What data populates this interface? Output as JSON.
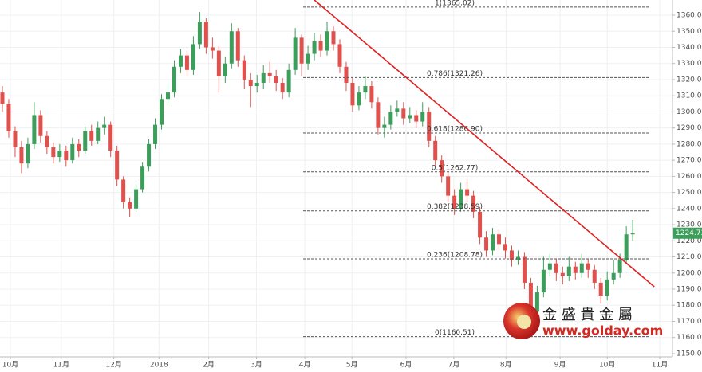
{
  "chart_data": {
    "type": "candlestick",
    "up_color": "#3c9e5a",
    "down_color": "#e0504c",
    "ylim": [
      1148,
      1369.4
    ],
    "yticks": [
      1150,
      1160,
      1170,
      1180,
      1190,
      1200,
      1210,
      1220,
      1230,
      1240,
      1250,
      1260,
      1270,
      1280,
      1290,
      1300,
      1310,
      1320,
      1330,
      1340,
      1350,
      1360
    ],
    "yticks_labels": [
      "1150.00",
      "1160.00",
      "1170.00",
      "1180.00",
      "1190.00",
      "1200.00",
      "1210.00",
      "1220.00",
      "1230.00",
      "1240.00",
      "1250.00",
      "1260.00",
      "1270.00",
      "1280.00",
      "1290.00",
      "1300.00",
      "1310.00",
      "1320.00",
      "1330.00",
      "1340.00",
      "1350.00",
      "1360.00"
    ],
    "xlim": [
      -0.375,
      105.25
    ],
    "xticks": [
      {
        "value": 1.25,
        "label": "10月"
      },
      {
        "value": 9.25,
        "label": "11月"
      },
      {
        "value": 17.5,
        "label": "12月"
      },
      {
        "value": 24.6,
        "label": "2018"
      },
      {
        "value": 32.4,
        "label": "2月"
      },
      {
        "value": 39.9,
        "label": "3月"
      },
      {
        "value": 47.5,
        "label": "4月"
      },
      {
        "value": 54.9,
        "label": "5月"
      },
      {
        "value": 63.4,
        "label": "6月"
      },
      {
        "value": 70.9,
        "label": "7月"
      },
      {
        "value": 79.1,
        "label": "8月"
      },
      {
        "value": 87.6,
        "label": "9月"
      },
      {
        "value": 95,
        "label": "10月"
      },
      {
        "value": 103.25,
        "label": "11月"
      }
    ],
    "grid": true,
    "ohlc": [
      [
        1312,
        1316,
        1300,
        1305
      ],
      [
        1305,
        1308,
        1284,
        1288
      ],
      [
        1288,
        1291,
        1272,
        1278
      ],
      [
        1278,
        1282,
        1262,
        1268
      ],
      [
        1268,
        1284,
        1265,
        1280
      ],
      [
        1280,
        1306,
        1277,
        1298
      ],
      [
        1298,
        1301,
        1281,
        1285
      ],
      [
        1285,
        1288,
        1274,
        1278
      ],
      [
        1278,
        1281,
        1268,
        1272
      ],
      [
        1272,
        1280,
        1269,
        1276
      ],
      [
        1276,
        1279,
        1266,
        1270
      ],
      [
        1270,
        1284,
        1268,
        1280
      ],
      [
        1280,
        1283,
        1272,
        1276
      ],
      [
        1276,
        1291,
        1274,
        1288
      ],
      [
        1288,
        1292,
        1279,
        1282
      ],
      [
        1282,
        1294,
        1280,
        1290
      ],
      [
        1290,
        1297,
        1286,
        1292
      ],
      [
        1292,
        1294,
        1272,
        1276
      ],
      [
        1276,
        1279,
        1254,
        1258
      ],
      [
        1258,
        1260,
        1240,
        1244
      ],
      [
        1244,
        1247,
        1235,
        1240
      ],
      [
        1240,
        1255,
        1238,
        1252
      ],
      [
        1252,
        1269,
        1250,
        1266
      ],
      [
        1266,
        1283,
        1263,
        1280
      ],
      [
        1280,
        1296,
        1277,
        1292
      ],
      [
        1292,
        1311,
        1289,
        1308
      ],
      [
        1308,
        1318,
        1304,
        1312
      ],
      [
        1312,
        1332,
        1309,
        1328
      ],
      [
        1328,
        1339,
        1324,
        1335
      ],
      [
        1335,
        1338,
        1322,
        1326
      ],
      [
        1326,
        1347,
        1323,
        1342
      ],
      [
        1342,
        1362,
        1339,
        1356
      ],
      [
        1356,
        1358,
        1336,
        1340
      ],
      [
        1340,
        1346,
        1333,
        1338
      ],
      [
        1338,
        1341,
        1312,
        1322
      ],
      [
        1322,
        1334,
        1318,
        1330
      ],
      [
        1330,
        1355,
        1327,
        1350
      ],
      [
        1350,
        1352,
        1328,
        1332
      ],
      [
        1332,
        1335,
        1314,
        1320
      ],
      [
        1320,
        1324,
        1303,
        1316
      ],
      [
        1316,
        1323,
        1312,
        1318
      ],
      [
        1318,
        1329,
        1314,
        1324
      ],
      [
        1324,
        1331,
        1318,
        1322
      ],
      [
        1322,
        1326,
        1313,
        1318
      ],
      [
        1318,
        1321,
        1308,
        1312
      ],
      [
        1312,
        1330,
        1309,
        1326
      ],
      [
        1326,
        1352,
        1323,
        1346
      ],
      [
        1346,
        1348,
        1322,
        1330
      ],
      [
        1330,
        1341,
        1326,
        1336
      ],
      [
        1336,
        1349,
        1332,
        1344
      ],
      [
        1344,
        1348,
        1334,
        1338
      ],
      [
        1338,
        1356,
        1335,
        1350
      ],
      [
        1350,
        1353,
        1338,
        1342
      ],
      [
        1342,
        1345,
        1324,
        1328
      ],
      [
        1328,
        1331,
        1313,
        1318
      ],
      [
        1318,
        1321,
        1300,
        1304
      ],
      [
        1304,
        1316,
        1301,
        1312
      ],
      [
        1312,
        1322,
        1308,
        1316
      ],
      [
        1316,
        1319,
        1302,
        1306
      ],
      [
        1306,
        1309,
        1286,
        1290
      ],
      [
        1290,
        1297,
        1284,
        1292
      ],
      [
        1292,
        1304,
        1289,
        1300
      ],
      [
        1300,
        1307,
        1297,
        1302
      ],
      [
        1302,
        1306,
        1292,
        1296
      ],
      [
        1296,
        1303,
        1293,
        1298
      ],
      [
        1298,
        1301,
        1290,
        1294
      ],
      [
        1294,
        1306,
        1291,
        1300
      ],
      [
        1300,
        1303,
        1278,
        1282
      ],
      [
        1282,
        1285,
        1266,
        1270
      ],
      [
        1270,
        1273,
        1256,
        1260
      ],
      [
        1260,
        1263,
        1244,
        1248
      ],
      [
        1248,
        1252,
        1236,
        1240
      ],
      [
        1240,
        1256,
        1238,
        1252
      ],
      [
        1252,
        1258,
        1244,
        1248
      ],
      [
        1248,
        1251,
        1234,
        1238
      ],
      [
        1238,
        1241,
        1218,
        1222
      ],
      [
        1222,
        1226,
        1210,
        1214
      ],
      [
        1214,
        1228,
        1211,
        1224
      ],
      [
        1224,
        1227,
        1214,
        1218
      ],
      [
        1218,
        1222,
        1209,
        1214
      ],
      [
        1214,
        1217,
        1204,
        1208
      ],
      [
        1208,
        1214,
        1205,
        1210
      ],
      [
        1210,
        1213,
        1190,
        1194
      ],
      [
        1194,
        1197,
        1170,
        1176
      ],
      [
        1176,
        1192,
        1173,
        1188
      ],
      [
        1188,
        1210,
        1185,
        1202
      ],
      [
        1202,
        1212,
        1198,
        1206
      ],
      [
        1206,
        1209,
        1195,
        1200
      ],
      [
        1200,
        1204,
        1193,
        1198
      ],
      [
        1198,
        1210,
        1195,
        1204
      ],
      [
        1204,
        1207,
        1196,
        1200
      ],
      [
        1200,
        1212,
        1197,
        1206
      ],
      [
        1206,
        1209,
        1197,
        1202
      ],
      [
        1202,
        1205,
        1190,
        1194
      ],
      [
        1194,
        1197,
        1181,
        1186
      ],
      [
        1186,
        1201,
        1183,
        1196
      ],
      [
        1196,
        1208,
        1193,
        1200
      ],
      [
        1200,
        1212,
        1197,
        1208
      ],
      [
        1208,
        1229,
        1206,
        1224
      ],
      [
        1224,
        1233,
        1220,
        1224.73
      ]
    ],
    "last_price_color": "#3c9e5a",
    "fib_levels": [
      {
        "label": "1(1365.02)",
        "value": 1365.02
      },
      {
        "label": "0.786(1321.26)",
        "value": 1321.26
      },
      {
        "label": "0.618(1286.90)",
        "value": 1286.9
      },
      {
        "label": "0.5(1262.77)",
        "value": 1262.77
      },
      {
        "label": "0.382(1238.59)",
        "value": 1238.59
      },
      {
        "label": "0.236(1208.78)",
        "value": 1208.78
      },
      {
        "label": "0(1160.51)",
        "value": 1160.51
      }
    ],
    "trendline": {
      "start": [
        49,
        1369.4
      ],
      "end": [
        102.4,
        1191.5
      ],
      "color": "#e02020"
    }
  },
  "watermark": {
    "title": "金 盛 貴 金 屬",
    "url": "www.golday.com"
  }
}
